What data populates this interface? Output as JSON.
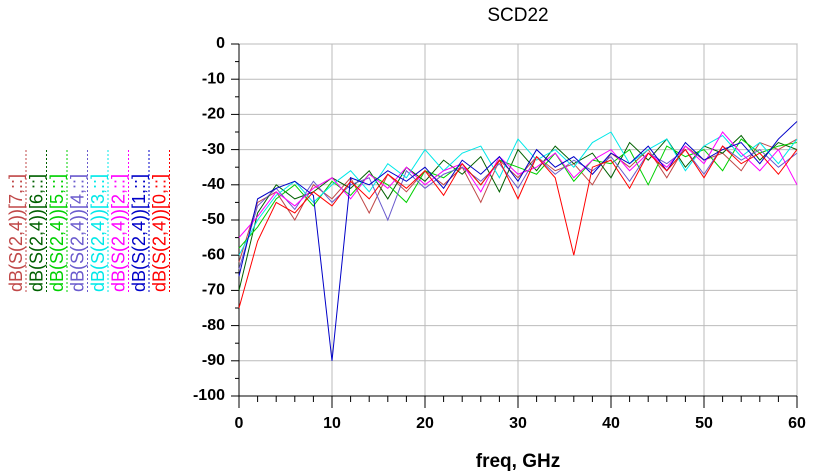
{
  "chart_data": {
    "type": "line",
    "title": "SCD22",
    "xlabel": "freq, GHz",
    "x": [
      0,
      2,
      4,
      6,
      8,
      10,
      12,
      14,
      16,
      18,
      20,
      22,
      24,
      26,
      28,
      30,
      32,
      34,
      36,
      38,
      40,
      42,
      44,
      46,
      48,
      50,
      52,
      54,
      56,
      58,
      60
    ],
    "xlim": [
      0,
      60
    ],
    "xticks": [
      0,
      10,
      20,
      30,
      40,
      50,
      60
    ],
    "xminorticks": [
      2,
      4,
      6,
      8,
      12,
      14,
      16,
      18,
      22,
      24,
      26,
      28,
      32,
      34,
      36,
      38,
      42,
      44,
      46,
      48,
      52,
      54,
      56,
      58
    ],
    "ylim": [
      -100,
      0
    ],
    "yticks": [
      -100,
      -90,
      -80,
      -70,
      -60,
      -50,
      -40,
      -30,
      -20,
      -10,
      0
    ],
    "yminorticks": [
      -95,
      -85,
      -75,
      -65,
      -55,
      -45,
      -35,
      -25,
      -15,
      -5
    ],
    "grid": true,
    "legend": "left",
    "series": [
      {
        "name": "dB(S(2,4))[7,::]",
        "color": "#c04848",
        "values": [
          -62,
          -45,
          -42,
          -50,
          -40,
          -44,
          -38,
          -48,
          -37,
          -42,
          -36,
          -40,
          -35,
          -45,
          -33,
          -38,
          -32,
          -36,
          -34,
          -40,
          -31,
          -35,
          -30,
          -38,
          -29,
          -33,
          -31,
          -36,
          -28,
          -30,
          -27
        ]
      },
      {
        "name": "dB(S(2,4))[6,::]",
        "color": "#006000",
        "values": [
          -70,
          -48,
          -40,
          -44,
          -42,
          -38,
          -41,
          -36,
          -44,
          -35,
          -39,
          -33,
          -37,
          -32,
          -42,
          -30,
          -36,
          -29,
          -34,
          -31,
          -38,
          -28,
          -33,
          -27,
          -35,
          -29,
          -31,
          -26,
          -33,
          -28,
          -30
        ]
      },
      {
        "name": "dB(S(2,4))[5,::]",
        "color": "#00d000",
        "values": [
          -58,
          -52,
          -44,
          -40,
          -46,
          -39,
          -43,
          -37,
          -40,
          -45,
          -36,
          -38,
          -34,
          -40,
          -33,
          -35,
          -37,
          -31,
          -39,
          -33,
          -34,
          -30,
          -40,
          -29,
          -32,
          -30,
          -36,
          -27,
          -31,
          -29,
          -28
        ]
      },
      {
        "name": "dB(S(2,4))[4,::]",
        "color": "#6a5acd",
        "values": [
          -64,
          -46,
          -41,
          -47,
          -39,
          -45,
          -40,
          -38,
          -50,
          -36,
          -41,
          -37,
          -35,
          -39,
          -34,
          -41,
          -32,
          -37,
          -33,
          -36,
          -32,
          -39,
          -31,
          -34,
          -30,
          -37,
          -29,
          -33,
          -30,
          -35,
          -31
        ]
      },
      {
        "name": "dB(S(2,4))[3,::]",
        "color": "#00e8e8",
        "values": [
          -60,
          -50,
          -43,
          -39,
          -45,
          -40,
          -36,
          -42,
          -34,
          -38,
          -30,
          -36,
          -31,
          -29,
          -38,
          -27,
          -33,
          -30,
          -35,
          -28,
          -25,
          -34,
          -30,
          -27,
          -36,
          -29,
          -26,
          -32,
          -28,
          -34,
          -27
        ]
      },
      {
        "name": "dB(S(2,4))[2,::]",
        "color": "#ff00ff",
        "values": [
          -55,
          -49,
          -42,
          -46,
          -41,
          -38,
          -44,
          -37,
          -41,
          -35,
          -40,
          -36,
          -34,
          -42,
          -32,
          -37,
          -35,
          -31,
          -38,
          -33,
          -30,
          -36,
          -31,
          -35,
          -29,
          -34,
          -25,
          -31,
          -36,
          -30,
          -40
        ]
      },
      {
        "name": "dB(S(2,4))[1,::]",
        "color": "#0000c8",
        "values": [
          -66,
          -44,
          -41,
          -39,
          -43,
          -90,
          -38,
          -40,
          -36,
          -39,
          -35,
          -41,
          -33,
          -37,
          -32,
          -39,
          -30,
          -35,
          -32,
          -37,
          -31,
          -34,
          -29,
          -36,
          -28,
          -33,
          -30,
          -28,
          -34,
          -27,
          -22
        ]
      },
      {
        "name": "dB(S(2,4))[0,::]",
        "color": "#ff0000",
        "values": [
          -75,
          -56,
          -45,
          -48,
          -42,
          -46,
          -39,
          -44,
          -37,
          -41,
          -36,
          -43,
          -34,
          -40,
          -33,
          -44,
          -32,
          -38,
          -60,
          -35,
          -33,
          -41,
          -31,
          -36,
          -30,
          -38,
          -29,
          -34,
          -31,
          -37,
          -30
        ]
      }
    ]
  }
}
